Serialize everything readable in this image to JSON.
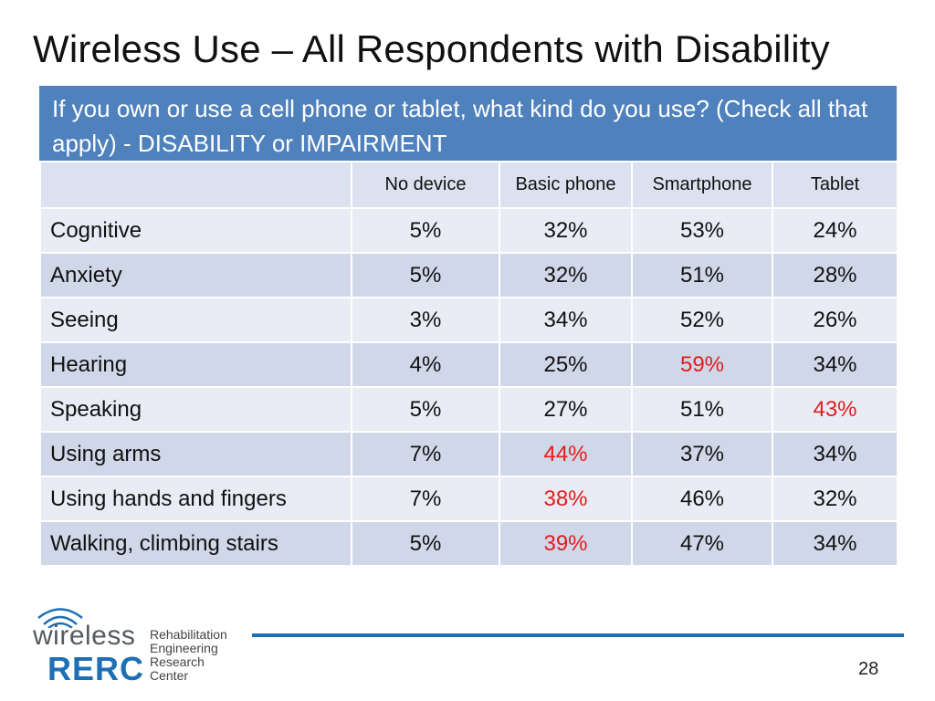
{
  "slide": {
    "title": "Wireless Use – All Respondents with Disability",
    "page_number": "28"
  },
  "table": {
    "question": "If you own or use a cell phone or tablet, what kind do you use? (Check all that apply)  - DISABILITY or IMPAIRMENT",
    "columns": [
      "",
      "No device",
      "Basic phone",
      "Smartphone",
      "Tablet"
    ],
    "rows": [
      {
        "label": "Cognitive",
        "values": [
          "5%",
          "32%",
          "53%",
          "24%"
        ]
      },
      {
        "label": "Anxiety",
        "values": [
          "5%",
          "32%",
          "51%",
          "28%"
        ]
      },
      {
        "label": "Seeing",
        "values": [
          "3%",
          "34%",
          "52%",
          "26%"
        ]
      },
      {
        "label": "Hearing",
        "values": [
          "4%",
          "25%",
          "59%",
          "34%"
        ]
      },
      {
        "label": "Speaking",
        "values": [
          "5%",
          "27%",
          "51%",
          "43%"
        ]
      },
      {
        "label": "Using arms",
        "values": [
          "7%",
          "44%",
          "37%",
          "34%"
        ]
      },
      {
        "label": "Using hands and fingers",
        "values": [
          "7%",
          "38%",
          "46%",
          "32%"
        ]
      },
      {
        "label": "Walking, climbing stairs",
        "values": [
          "5%",
          "39%",
          "47%",
          "34%"
        ]
      }
    ],
    "highlight_color": "#e41b1b",
    "header_color": "#4f81bd"
  },
  "logo": {
    "word": "wireless",
    "acronym": "RERC",
    "subtitle_lines": [
      "Rehabilitation",
      "Engineering",
      "Research",
      "Center"
    ],
    "icon": "wifi-waves-icon"
  }
}
